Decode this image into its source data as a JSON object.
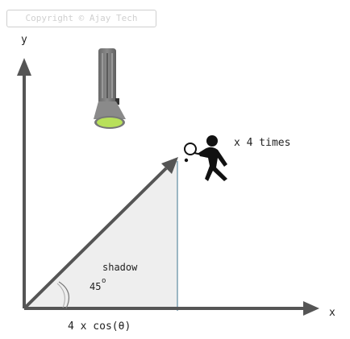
{
  "watermark": "Copyright © Ajay Tech",
  "axes": {
    "x_label": "x",
    "y_label": "y"
  },
  "labels": {
    "times": "x 4 times",
    "shadow": "shadow",
    "angle": "45",
    "degree": "o",
    "projection": "4 x cos(θ)"
  },
  "icons": {
    "light": "flashlight-icon",
    "object": "tennis-player-icon"
  },
  "colors": {
    "axis": "#555555",
    "vector": "#555555",
    "shadow_fill": "#eeeeee",
    "drop_line": "#5e8aa0",
    "flashlight_body": "#7b7b7b",
    "flashlight_lens": "#b8e05a",
    "figure": "#111111"
  }
}
